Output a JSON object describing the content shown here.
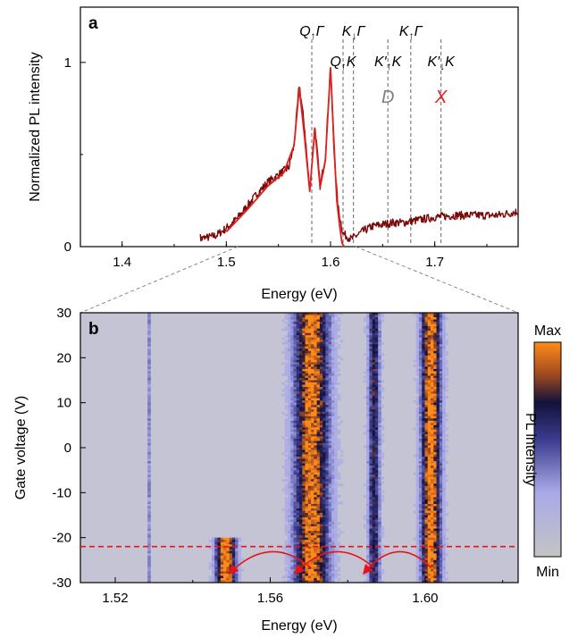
{
  "chart_data": [
    {
      "panel": "a",
      "type": "line",
      "xlabel": "Energy (eV)",
      "ylabel": "Normalized PL intensity",
      "xlim": [
        1.36,
        1.78
      ],
      "ylim": [
        0,
        1.3
      ],
      "xticks": [
        "1.4",
        "1.5",
        "1.6",
        "1.7"
      ],
      "yticks": [
        "0",
        "1"
      ],
      "series": [
        {
          "color": "#7a0a0a",
          "x": [
            1.475,
            1.49,
            1.5,
            1.51,
            1.52,
            1.53,
            1.54,
            1.55,
            1.56,
            1.565,
            1.57,
            1.575,
            1.58,
            1.585,
            1.59,
            1.595,
            1.6,
            1.603,
            1.607,
            1.612,
            1.62,
            1.63,
            1.64,
            1.65,
            1.66,
            1.67,
            1.68,
            1.7,
            1.72,
            1.74,
            1.76,
            1.78
          ],
          "y": [
            0.04,
            0.06,
            0.1,
            0.15,
            0.22,
            0.29,
            0.35,
            0.39,
            0.43,
            0.55,
            0.88,
            0.65,
            0.3,
            0.66,
            0.33,
            0.48,
            0.99,
            0.55,
            0.22,
            0.07,
            0.04,
            0.08,
            0.11,
            0.12,
            0.13,
            0.13,
            0.14,
            0.16,
            0.17,
            0.17,
            0.17,
            0.19
          ]
        },
        {
          "color": "#e02020",
          "x": [
            1.5,
            1.52,
            1.54,
            1.555,
            1.565,
            1.57,
            1.575,
            1.58,
            1.585,
            1.59,
            1.595,
            1.6,
            1.603,
            1.606,
            1.609,
            1.611,
            1.613
          ],
          "y": [
            0.08,
            0.2,
            0.33,
            0.4,
            0.55,
            0.86,
            0.6,
            0.3,
            0.64,
            0.32,
            0.47,
            0.97,
            0.6,
            0.25,
            0.1,
            0.02,
            0.0
          ]
        }
      ],
      "annotations": [
        {
          "text_main": "Q",
          "sub": "↑",
          "suffix": "Γ",
          "x": 1.582,
          "row": 1,
          "color": "#000000"
        },
        {
          "text_main": "K",
          "sub": "↓",
          "suffix": "Γ",
          "x": 1.622,
          "row": 1,
          "color": "#000000"
        },
        {
          "text_main": "K",
          "sub": "↑",
          "suffix": "Γ",
          "x": 1.677,
          "row": 1,
          "color": "#000000"
        },
        {
          "text_main": "Q",
          "sub": "↑",
          "suffix": "K",
          "x": 1.612,
          "row": 2,
          "color": "#000000"
        },
        {
          "text_main": "K′",
          "sub": "↑",
          "suffix": "K",
          "x": 1.655,
          "row": 2,
          "color": "#000000"
        },
        {
          "text_main": "K′",
          "sub": "↓",
          "suffix": "K",
          "x": 1.706,
          "row": 2,
          "color": "#000000"
        },
        {
          "text_main": "D",
          "sub": "",
          "suffix": "",
          "x": 1.655,
          "row": 3,
          "color": "#808080"
        },
        {
          "text_main": "X",
          "sub": "",
          "suffix": "",
          "x": 1.706,
          "row": 3,
          "color": "#e02020"
        }
      ]
    },
    {
      "panel": "b",
      "type": "heatmap",
      "xlabel": "Energy (eV)",
      "ylabel": "Gate voltage (V)",
      "xlim": [
        1.511,
        1.624
      ],
      "ylim": [
        -30,
        30
      ],
      "xticks": [
        "1.52",
        "1.56",
        "1.60"
      ],
      "yticks": [
        "-30",
        "-20",
        "-10",
        "0",
        "10",
        "20",
        "30"
      ],
      "dashed_line_y": -22,
      "features": [
        {
          "center": 1.5707,
          "width": 0.0045,
          "v_from": -30,
          "v_to": 30,
          "intensity": 0.9
        },
        {
          "center": 1.5868,
          "width": 0.0015,
          "v_from": -30,
          "v_to": 30,
          "intensity": 0.6
        },
        {
          "center": 1.6015,
          "width": 0.0025,
          "v_from": -30,
          "v_to": 30,
          "intensity": 0.95
        },
        {
          "center": 1.5485,
          "width": 0.0025,
          "v_from": -30,
          "v_to": -20,
          "intensity": 1.0
        },
        {
          "center": 1.5285,
          "width": 0.0003,
          "v_from": -30,
          "v_to": 30,
          "intensity": 0.4
        }
      ],
      "arrows": [
        {
          "from": 1.5705,
          "to": 1.5495
        },
        {
          "from": 1.5868,
          "to": 1.5665
        },
        {
          "from": 1.6015,
          "to": 1.5842
        }
      ]
    }
  ],
  "panel_labels": {
    "a": "a",
    "b": "b"
  },
  "colorbar": {
    "label": "PL intensity",
    "max_label": "Max",
    "min_label": "Min"
  }
}
